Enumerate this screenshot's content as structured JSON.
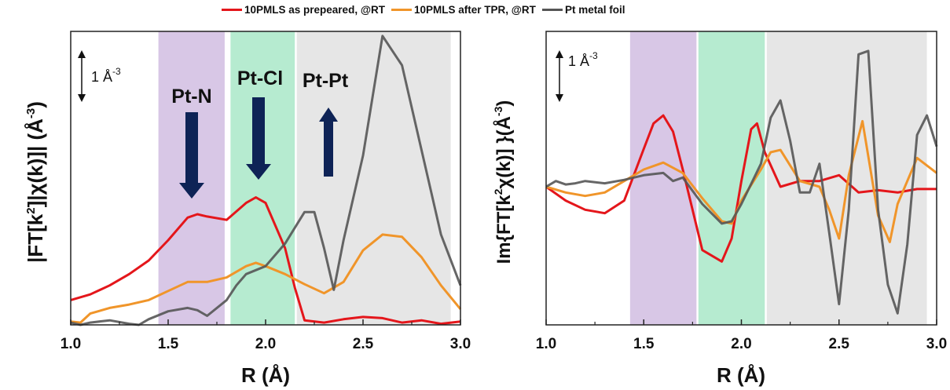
{
  "legend": [
    {
      "label": "10PMLS as prepeared, @RT",
      "color": "#e4161b"
    },
    {
      "label": "10PMLS after TPR, @RT",
      "color": "#f0952a"
    },
    {
      "label": "Pt metal foil",
      "color": "#555555"
    }
  ],
  "chart_data": [
    {
      "type": "line",
      "title": "",
      "xlabel": "R (Å)",
      "ylabel": "|FT[k2]|χ(k)]| (Å-3)",
      "xlim": [
        1.0,
        3.0
      ],
      "ylim": [
        0,
        2.6
      ],
      "xticks": [
        "1.0",
        "1.5",
        "2.0",
        "2.5",
        "3.0"
      ],
      "scale_bar": "1 Å-3",
      "grid": false,
      "bands": [
        {
          "label": "Pt-N",
          "x": [
            1.45,
            1.79
          ],
          "color": "#d8c7e6",
          "arrow": "down"
        },
        {
          "label": "Pt-Cl",
          "x": [
            1.82,
            2.15
          ],
          "color": "#b6ebd0",
          "arrow": "down"
        },
        {
          "label": "Pt-Pt",
          "x": [
            2.16,
            2.95
          ],
          "color": "#e6e6e6",
          "arrow": "up"
        }
      ],
      "series": [
        {
          "name": "10PMLS as prepeared, @RT",
          "color": "#e4161b",
          "x": [
            1.0,
            1.1,
            1.2,
            1.3,
            1.4,
            1.5,
            1.6,
            1.65,
            1.7,
            1.8,
            1.9,
            1.95,
            2.0,
            2.1,
            2.15,
            2.2,
            2.3,
            2.4,
            2.5,
            2.6,
            2.7,
            2.8,
            2.9,
            3.0
          ],
          "y": [
            0.22,
            0.27,
            0.35,
            0.45,
            0.57,
            0.75,
            0.95,
            0.98,
            0.96,
            0.93,
            1.08,
            1.13,
            1.08,
            0.68,
            0.33,
            0.04,
            0.02,
            0.05,
            0.07,
            0.06,
            0.02,
            0.04,
            0.01,
            0.03
          ]
        },
        {
          "name": "10PMLS after TPR, @RT",
          "color": "#f0952a",
          "x": [
            1.0,
            1.05,
            1.1,
            1.2,
            1.3,
            1.4,
            1.5,
            1.6,
            1.7,
            1.8,
            1.9,
            1.95,
            2.0,
            2.1,
            2.2,
            2.3,
            2.4,
            2.5,
            2.6,
            2.7,
            2.8,
            2.9,
            3.0
          ],
          "y": [
            0.03,
            0.02,
            0.1,
            0.15,
            0.18,
            0.22,
            0.3,
            0.38,
            0.38,
            0.42,
            0.52,
            0.55,
            0.52,
            0.45,
            0.36,
            0.28,
            0.38,
            0.66,
            0.8,
            0.78,
            0.6,
            0.35,
            0.14
          ]
        },
        {
          "name": "Pt metal foil",
          "color": "#555555",
          "x": [
            1.0,
            1.05,
            1.1,
            1.2,
            1.3,
            1.35,
            1.4,
            1.5,
            1.6,
            1.65,
            1.7,
            1.8,
            1.85,
            1.9,
            2.0,
            2.1,
            2.2,
            2.25,
            2.3,
            2.35,
            2.4,
            2.5,
            2.6,
            2.7,
            2.8,
            2.9,
            3.0
          ],
          "y": [
            0.02,
            0.0,
            0.02,
            0.04,
            0.01,
            0.0,
            0.05,
            0.12,
            0.15,
            0.13,
            0.08,
            0.22,
            0.35,
            0.45,
            0.52,
            0.72,
            1.0,
            1.0,
            0.68,
            0.31,
            0.75,
            1.5,
            2.56,
            2.3,
            1.55,
            0.8,
            0.35
          ]
        }
      ]
    },
    {
      "type": "line",
      "title": "",
      "xlabel": "R (Å)",
      "ylabel": "Im{FT[k2χ(k)] }(Å-3)",
      "xlim": [
        1.0,
        3.0
      ],
      "ylim": [
        -1.2,
        1.35
      ],
      "xticks": [
        "1.0",
        "1.5",
        "2.0",
        "2.5",
        "3.0"
      ],
      "scale_bar": "1 Å-3",
      "grid": false,
      "bands": [
        {
          "label": "",
          "x": [
            1.43,
            1.77
          ],
          "color": "#d8c7e6"
        },
        {
          "label": "",
          "x": [
            1.78,
            2.12
          ],
          "color": "#b6ebd0"
        },
        {
          "label": "",
          "x": [
            2.13,
            2.95
          ],
          "color": "#e6e6e6"
        }
      ],
      "series": [
        {
          "name": "10PMLS as prepeared, @RT",
          "color": "#e4161b",
          "x": [
            1.0,
            1.1,
            1.2,
            1.3,
            1.4,
            1.5,
            1.55,
            1.6,
            1.65,
            1.7,
            1.8,
            1.9,
            1.95,
            2.0,
            2.05,
            2.08,
            2.12,
            2.2,
            2.3,
            2.4,
            2.5,
            2.6,
            2.7,
            2.8,
            2.9,
            3.0
          ],
          "y": [
            0.0,
            -0.12,
            -0.2,
            -0.23,
            -0.12,
            0.33,
            0.55,
            0.62,
            0.48,
            0.15,
            -0.55,
            -0.65,
            -0.45,
            0.05,
            0.5,
            0.55,
            0.3,
            0.0,
            0.05,
            0.05,
            0.1,
            -0.05,
            -0.03,
            -0.05,
            -0.02,
            -0.02
          ]
        },
        {
          "name": "10PMLS after TPR, @RT",
          "color": "#f0952a",
          "x": [
            1.0,
            1.1,
            1.2,
            1.3,
            1.4,
            1.5,
            1.6,
            1.7,
            1.8,
            1.9,
            1.95,
            2.0,
            2.1,
            2.15,
            2.2,
            2.3,
            2.4,
            2.45,
            2.5,
            2.55,
            2.62,
            2.7,
            2.76,
            2.8,
            2.9,
            3.0
          ],
          "y": [
            0.0,
            -0.05,
            -0.08,
            -0.05,
            0.05,
            0.15,
            0.21,
            0.12,
            -0.1,
            -0.3,
            -0.32,
            -0.12,
            0.15,
            0.3,
            0.32,
            0.05,
            0.0,
            -0.2,
            -0.45,
            0.1,
            0.57,
            -0.25,
            -0.48,
            -0.15,
            0.25,
            0.12
          ]
        },
        {
          "name": "Pt metal foil",
          "color": "#555555",
          "x": [
            1.0,
            1.05,
            1.1,
            1.15,
            1.2,
            1.3,
            1.4,
            1.5,
            1.6,
            1.65,
            1.7,
            1.8,
            1.9,
            1.95,
            2.0,
            2.1,
            2.15,
            2.2,
            2.25,
            2.3,
            2.35,
            2.4,
            2.45,
            2.5,
            2.55,
            2.6,
            2.65,
            2.7,
            2.75,
            2.8,
            2.85,
            2.9,
            2.95,
            3.0
          ],
          "y": [
            0.0,
            0.05,
            0.02,
            0.03,
            0.05,
            0.03,
            0.06,
            0.1,
            0.12,
            0.05,
            0.08,
            -0.15,
            -0.32,
            -0.3,
            -0.15,
            0.2,
            0.6,
            0.75,
            0.4,
            -0.05,
            -0.05,
            0.2,
            -0.4,
            -1.02,
            -0.2,
            1.15,
            1.18,
            -0.2,
            -0.85,
            -1.1,
            -0.5,
            0.45,
            0.62,
            0.35
          ]
        }
      ]
    }
  ]
}
